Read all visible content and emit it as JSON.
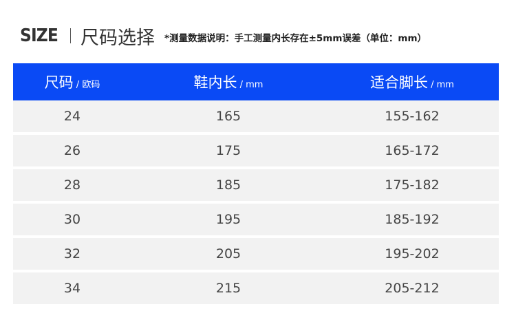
{
  "title": {
    "brand": "SIZE",
    "heading": "尺码选择",
    "note": "*测量数据说明：手工测量内长存在±5mm误差（单位：mm）"
  },
  "colors": {
    "header_bg": "#0a4af5",
    "row_bg": "#f2f2f2"
  },
  "table": {
    "headers": [
      {
        "main": "尺码",
        "unit": " / 欧码"
      },
      {
        "main": "鞋内长",
        "unit": " / mm"
      },
      {
        "main": "适合脚长",
        "unit": " / mm"
      }
    ],
    "rows": [
      [
        "24",
        "165",
        "155-162"
      ],
      [
        "26",
        "175",
        "165-172"
      ],
      [
        "28",
        "185",
        "175-182"
      ],
      [
        "30",
        "195",
        "185-192"
      ],
      [
        "32",
        "205",
        "195-202"
      ],
      [
        "34",
        "215",
        "205-212"
      ]
    ]
  }
}
